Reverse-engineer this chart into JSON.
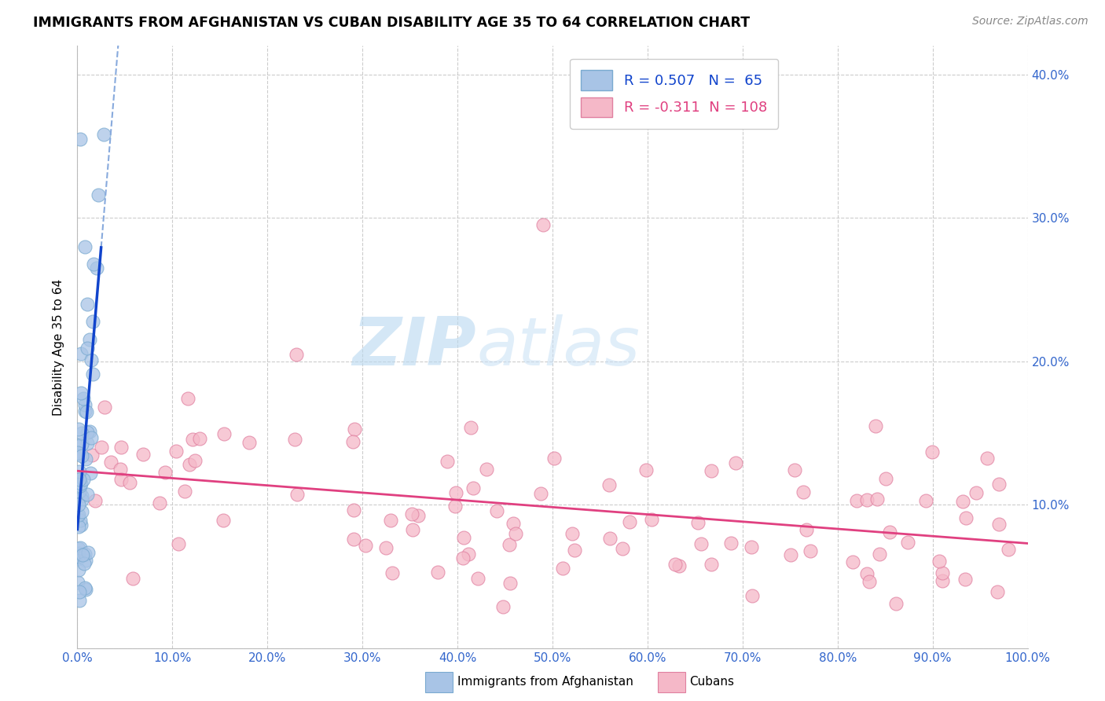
{
  "title": "IMMIGRANTS FROM AFGHANISTAN VS CUBAN DISABILITY AGE 35 TO 64 CORRELATION CHART",
  "source": "Source: ZipAtlas.com",
  "ylabel": "Disability Age 35 to 64",
  "watermark_zip": "ZIP",
  "watermark_atlas": "atlas",
  "xlim": [
    0.0,
    1.0
  ],
  "ylim": [
    0.0,
    0.42
  ],
  "xticks": [
    0.0,
    0.1,
    0.2,
    0.3,
    0.4,
    0.5,
    0.6,
    0.7,
    0.8,
    0.9,
    1.0
  ],
  "xtick_labels": [
    "0.0%",
    "10.0%",
    "20.0%",
    "30.0%",
    "40.0%",
    "50.0%",
    "60.0%",
    "70.0%",
    "80.0%",
    "90.0%",
    "100.0%"
  ],
  "yticks": [
    0.0,
    0.1,
    0.2,
    0.3,
    0.4
  ],
  "ytick_labels": [
    "",
    "10.0%",
    "20.0%",
    "30.0%",
    "40.0%"
  ],
  "R_afghanistan": 0.507,
  "N_afghanistan": 65,
  "R_cuban": -0.311,
  "N_cuban": 108,
  "afghanistan_scatter_fc": "#a8c4e6",
  "afghanistan_scatter_ec": "#7aaad0",
  "cuban_scatter_fc": "#f5b8c8",
  "cuban_scatter_ec": "#e080a0",
  "afghanistan_line_color": "#1144cc",
  "cuban_line_color": "#e04080",
  "dash_line_color": "#88aadd",
  "legend_label_1": "Immigrants from Afghanistan",
  "legend_label_2": "Cubans",
  "title_fontsize": 12.5,
  "axis_tick_fontsize": 11,
  "legend_fontsize": 13,
  "watermark_fontsize_zip": 62,
  "watermark_fontsize_atlas": 62,
  "tick_color": "#3366cc",
  "source_color": "#888888"
}
